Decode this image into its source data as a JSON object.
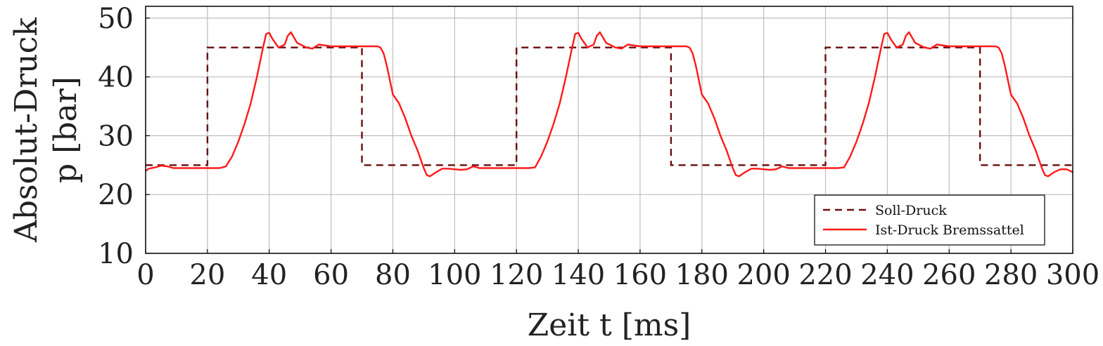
{
  "chart_data": {
    "type": "line",
    "title": "",
    "xlabel": "Zeit t [ms]",
    "ylabel_line1": "Absolut-Druck",
    "ylabel_line2": "p [bar]",
    "xlim": [
      0,
      300
    ],
    "ylim": [
      10,
      52
    ],
    "xticks": [
      0,
      20,
      40,
      60,
      80,
      100,
      120,
      140,
      160,
      180,
      200,
      220,
      240,
      260,
      280,
      300
    ],
    "yticks": [
      10,
      20,
      30,
      40,
      50
    ],
    "grid": true,
    "legend_position": "bottom-right",
    "series": [
      {
        "name": "Soll-Druck",
        "style": "dashed",
        "color": "#6b0d0d",
        "x": [
          0,
          20,
          20,
          70,
          70,
          120,
          120,
          170,
          170,
          220,
          220,
          270,
          270,
          300
        ],
        "y": [
          25,
          25,
          45,
          45,
          25,
          25,
          45,
          45,
          25,
          25,
          45,
          45,
          25,
          25
        ]
      },
      {
        "name": "Ist-Druck Bremssattel",
        "style": "solid",
        "color": "#ff1a1a",
        "x": [
          0,
          1,
          3,
          5,
          7,
          9,
          12,
          16,
          20,
          24,
          26,
          28,
          30,
          32,
          34,
          36,
          38,
          39,
          40,
          41,
          43,
          45,
          46,
          47,
          49,
          52,
          54,
          56,
          60,
          65,
          70,
          73,
          75,
          76,
          77,
          78,
          79,
          80,
          82,
          84,
          86,
          88,
          89,
          90,
          91,
          92,
          94,
          96,
          98,
          100,
          102,
          104,
          106,
          108,
          112,
          116,
          120,
          124,
          126,
          128,
          130,
          132,
          134,
          136,
          138,
          139,
          140,
          141,
          143,
          145,
          146,
          147,
          149,
          152,
          154,
          156,
          160,
          165,
          170,
          173,
          175,
          176,
          177,
          178,
          179,
          180,
          182,
          184,
          186,
          188,
          189,
          190,
          191,
          192,
          194,
          196,
          198,
          200,
          202,
          204,
          206,
          208,
          212,
          216,
          220,
          224,
          226,
          228,
          230,
          232,
          234,
          236,
          238,
          239,
          240,
          241,
          243,
          245,
          246,
          247,
          249,
          252,
          254,
          256,
          260,
          265,
          270,
          273,
          275,
          276,
          277,
          278,
          279,
          280,
          282,
          284,
          286,
          288,
          289,
          290,
          291,
          292,
          294,
          296,
          298,
          300
        ],
        "y": [
          24.0,
          24.4,
          24.6,
          24.9,
          24.8,
          24.5,
          24.5,
          24.5,
          24.5,
          24.5,
          24.8,
          26.5,
          29.0,
          32.0,
          35.5,
          40.0,
          45.0,
          47.3,
          47.5,
          46.5,
          45.0,
          45.5,
          47.0,
          47.6,
          45.8,
          45.0,
          44.8,
          45.5,
          45.2,
          45.2,
          45.2,
          45.2,
          45.2,
          45.0,
          44.0,
          42.0,
          39.5,
          37.0,
          35.5,
          33.0,
          30.0,
          27.5,
          26.0,
          24.5,
          23.3,
          23.1,
          23.8,
          24.4,
          24.4,
          24.3,
          24.2,
          24.3,
          24.8,
          24.5,
          24.5,
          24.5,
          24.5,
          24.5,
          24.6,
          26.5,
          29.0,
          32.0,
          35.5,
          40.0,
          45.0,
          47.3,
          47.5,
          46.5,
          45.0,
          45.5,
          47.0,
          47.6,
          45.8,
          45.0,
          44.8,
          45.5,
          45.2,
          45.2,
          45.2,
          45.2,
          45.2,
          45.0,
          44.0,
          42.0,
          39.5,
          37.0,
          35.5,
          33.0,
          30.0,
          27.5,
          26.0,
          24.5,
          23.3,
          23.1,
          23.8,
          24.4,
          24.4,
          24.3,
          24.2,
          24.3,
          24.8,
          24.5,
          24.5,
          24.5,
          24.5,
          24.5,
          24.6,
          26.5,
          29.0,
          32.0,
          35.5,
          40.0,
          45.0,
          47.3,
          47.5,
          46.5,
          45.0,
          45.5,
          47.0,
          47.6,
          45.8,
          45.0,
          44.8,
          45.5,
          45.2,
          45.2,
          45.2,
          45.2,
          45.2,
          45.0,
          44.0,
          42.0,
          39.5,
          37.0,
          35.5,
          33.0,
          30.0,
          27.5,
          26.0,
          24.5,
          23.3,
          23.1,
          23.8,
          24.3,
          24.3,
          23.8
        ]
      }
    ]
  }
}
